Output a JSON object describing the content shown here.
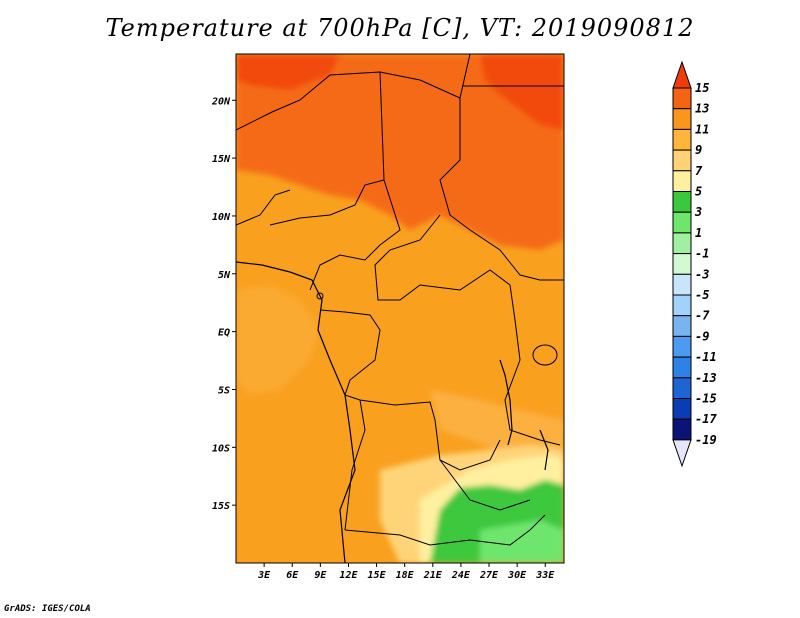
{
  "title": "Temperature at 700hPa [C], VT: 2019090812",
  "credit": "GrADS: IGES/COLA",
  "map": {
    "lon_range": [
      0,
      35
    ],
    "lat_range": [
      -20,
      24
    ],
    "lat_ticks": [
      {
        "value": 20,
        "label": "20N"
      },
      {
        "value": 15,
        "label": "15N"
      },
      {
        "value": 10,
        "label": "10N"
      },
      {
        "value": 5,
        "label": "5N"
      },
      {
        "value": 0,
        "label": "EQ"
      },
      {
        "value": -5,
        "label": "5S"
      },
      {
        "value": -10,
        "label": "10S"
      },
      {
        "value": -15,
        "label": "15S"
      }
    ],
    "lon_ticks": [
      {
        "value": 3,
        "label": "3E"
      },
      {
        "value": 6,
        "label": "6E"
      },
      {
        "value": 9,
        "label": "9E"
      },
      {
        "value": 12,
        "label": "12E"
      },
      {
        "value": 15,
        "label": "15E"
      },
      {
        "value": 18,
        "label": "18E"
      },
      {
        "value": 21,
        "label": "21E"
      },
      {
        "value": 24,
        "label": "24E"
      },
      {
        "value": 27,
        "label": "27E"
      },
      {
        "value": 30,
        "label": "30E"
      },
      {
        "value": 33,
        "label": "33E"
      }
    ]
  },
  "colorbar": {
    "levels": [
      "15",
      "13",
      "11",
      "9",
      "7",
      "5",
      "3",
      "1",
      "-1",
      "-3",
      "-5",
      "-7",
      "-9",
      "-11",
      "-13",
      "-15",
      "-17",
      "-19"
    ],
    "colors": [
      "#f03c0a",
      "#f56414",
      "#fa961e",
      "#ffb43c",
      "#ffd278",
      "#fff0a0",
      "#3cc83c",
      "#6ee66e",
      "#a0f0a0",
      "#d2fad2",
      "#c8e6fa",
      "#a0d2fa",
      "#78b4f0",
      "#4b9bf0",
      "#2d82e6",
      "#1e64d2",
      "#0a3cb4",
      "#0a1478",
      "#e6e6fa"
    ]
  }
}
